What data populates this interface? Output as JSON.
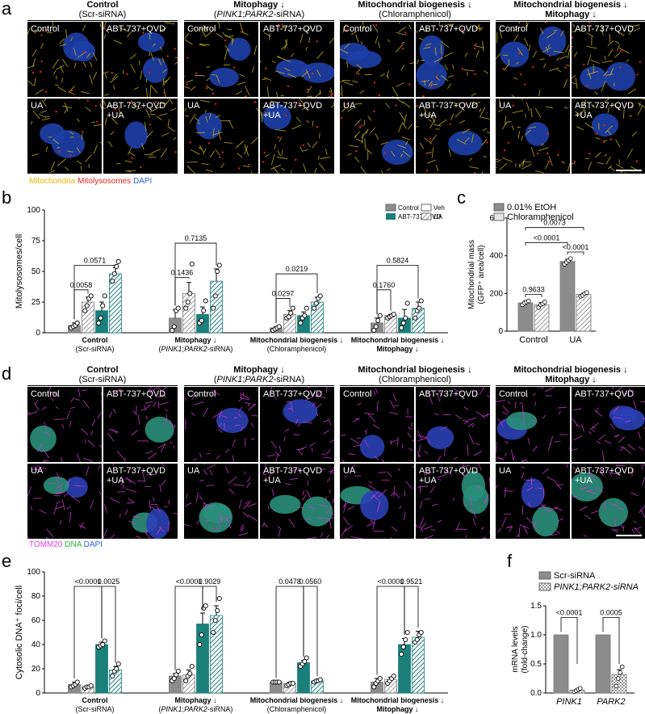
{
  "panel_letters": {
    "a": "a",
    "b": "b",
    "c": "c",
    "d": "d",
    "e": "e",
    "f": "f"
  },
  "groups": [
    {
      "title": "Control",
      "subtitle": "(Scr-siRNA)",
      "subtitle_parts": [
        "(Scr-siRNA)"
      ]
    },
    {
      "title": "Mitophagy ↓",
      "subtitle": "(PINK1;PARK2-siRNA)",
      "subtitle_parts": [
        "(",
        "PINK1",
        ";",
        "PARK2",
        "-siRNA)"
      ]
    },
    {
      "title": "Mitochondrial biogenesis ↓",
      "subtitle": "(Chloramphenicol)",
      "subtitle_parts": [
        "(Chloramphenicol)"
      ]
    },
    {
      "title": "Mitochondrial biogenesis ↓",
      "subtitle": "Mitophagy ↓",
      "subtitle_parts": [
        "Mitophagy ↓"
      ]
    }
  ],
  "tile_labels": {
    "control": "Control",
    "abt": "ABT-737+QVD",
    "ua": "UA",
    "abt_ua": "ABT-737+QVD\n+UA"
  },
  "colors": {
    "gray": "#8c8c8c",
    "teal": "#1b7f7a",
    "light_gray": "#e6e6e6",
    "mito_yellow": "#e8b800",
    "lyso_red": "#e02020",
    "dapi_blue": "#2f5fd0",
    "tomm_magenta": "#e040e0",
    "dna_green": "#20c020"
  },
  "caption_a": {
    "mito": "Mitochondria",
    "lyso": "Mitolysosomes",
    "dapi": "DAPI"
  },
  "caption_d": {
    "tomm": "TOMM20",
    "dna": "DNA",
    "dapi": "DAPI"
  },
  "chart_data": [
    {
      "panel": "b",
      "type": "bar",
      "ylabel": "Mitolysosomes/cell",
      "ylim": [
        0,
        100
      ],
      "yticks": [
        0,
        25,
        50,
        75,
        100
      ],
      "legend": [
        "Control",
        "ABT-737+QVD",
        "Veh",
        "UA"
      ],
      "group_labels": [
        [
          "Control",
          "(Scr-siRNA)"
        ],
        [
          "Mitophagy ↓",
          "(PINK1;PARK2-siRNA)"
        ],
        [
          "Mitochondrial biogenesis ↓",
          "(Chloramphenicol)"
        ],
        [
          "Mitochondrial biogenesis ↓",
          "Mitophagy ↓"
        ]
      ],
      "conditions": [
        "Control+Veh",
        "Control+UA",
        "ABT-737+QVD+Veh",
        "ABT-737+QVD+UA"
      ],
      "values": [
        [
          6,
          25,
          18,
          48
        ],
        [
          12,
          32,
          15,
          42
        ],
        [
          4,
          15,
          14,
          25
        ],
        [
          8,
          14,
          12,
          20
        ]
      ],
      "errors": [
        [
          2,
          4,
          7,
          5
        ],
        [
          7,
          9,
          6,
          10
        ],
        [
          1,
          3,
          3,
          4
        ],
        [
          4,
          1,
          7,
          5
        ]
      ],
      "points": [
        [
          [
            4,
            5,
            6,
            8
          ],
          [
            18,
            22,
            28,
            30
          ],
          [
            8,
            12,
            22,
            30
          ],
          [
            42,
            48,
            54,
            58
          ]
        ],
        [
          [
            2,
            5,
            18,
            20
          ],
          [
            20,
            25,
            32,
            56
          ],
          [
            8,
            10,
            18,
            26
          ],
          [
            20,
            30,
            50,
            55
          ]
        ],
        [
          [
            2,
            3,
            4,
            5
          ],
          [
            12,
            13,
            16,
            20
          ],
          [
            8,
            12,
            14,
            20
          ],
          [
            20,
            24,
            28,
            30
          ]
        ],
        [
          [
            2,
            5,
            10,
            14
          ],
          [
            12,
            13,
            14,
            15
          ],
          [
            4,
            8,
            12,
            24
          ],
          [
            12,
            18,
            20,
            26
          ]
        ]
      ],
      "annotations": [
        {
          "group": 0,
          "text": "0.0058"
        },
        {
          "group": 0,
          "text": "0.0571"
        },
        {
          "group": 1,
          "text": "0.1436"
        },
        {
          "group": 1,
          "text": "0.7135"
        },
        {
          "group": 2,
          "text": "0.0297"
        },
        {
          "group": 2,
          "text": "0.0219"
        },
        {
          "group": 3,
          "text": "0.1760"
        },
        {
          "group": 3,
          "text": "0.5824"
        }
      ]
    },
    {
      "panel": "c",
      "type": "bar",
      "ylabel": "Mitochondrial mass (GFP⁺ area/cell)",
      "ylim": [
        0,
        600
      ],
      "yticks": [
        0,
        200,
        400,
        600
      ],
      "categories": [
        "Control",
        "UA"
      ],
      "legend": [
        "0.01% EtOH",
        "Chloramphenicol"
      ],
      "values": [
        [
          150,
          140
        ],
        [
          370,
          195
        ]
      ],
      "errors": [
        [
          10,
          12
        ],
        [
          12,
          6
        ]
      ],
      "points": [
        [
          [
            140,
            150,
            155,
            160
          ],
          [
            125,
            140,
            145,
            155
          ]
        ],
        [
          [
            355,
            365,
            375,
            385
          ],
          [
            185,
            190,
            200,
            205
          ]
        ]
      ],
      "annotations": [
        "0.9633",
        "<0.0001",
        "<0.0001",
        "0.0073"
      ]
    },
    {
      "panel": "e",
      "type": "bar",
      "ylabel": "Cytosolic DNA⁺ foci/cell",
      "ylim": [
        0,
        100
      ],
      "yticks": [
        0,
        20,
        40,
        60,
        80,
        100
      ],
      "group_labels": [
        [
          "Control",
          "(Scr-siRNA)"
        ],
        [
          "Mitophagy ↓",
          "(PINK1;PARK2-siRNA)"
        ],
        [
          "Mitochondrial biogenesis ↓",
          "(Chloramphenicol)"
        ],
        [
          "Mitochondrial biogenesis ↓",
          "Mitophagy ↓"
        ]
      ],
      "conditions": [
        "Control+Veh",
        "Control+UA",
        "ABT-737+QVD+Veh",
        "ABT-737+QVD+UA"
      ],
      "values": [
        [
          7,
          5,
          40,
          19
        ],
        [
          14,
          15,
          57,
          64
        ],
        [
          9,
          8,
          25,
          10
        ],
        [
          9,
          11,
          40,
          46
        ]
      ],
      "errors": [
        [
          2,
          1,
          2,
          3
        ],
        [
          2,
          4,
          9,
          8
        ],
        [
          0.5,
          1,
          2,
          1
        ],
        [
          3,
          2,
          5,
          5
        ]
      ],
      "points": [
        [
          [
            5,
            6,
            7,
            9
          ],
          [
            4,
            5,
            5,
            6
          ],
          [
            38,
            39,
            40,
            43
          ],
          [
            14,
            18,
            20,
            24
          ]
        ],
        [
          [
            10,
            12,
            15,
            18
          ],
          [
            10,
            14,
            16,
            22
          ],
          [
            40,
            48,
            70,
            72
          ],
          [
            50,
            60,
            68,
            78
          ]
        ],
        [
          [
            9,
            9,
            9,
            9
          ],
          [
            6,
            7,
            8,
            8
          ],
          [
            22,
            24,
            26,
            29
          ],
          [
            9,
            10,
            10,
            11
          ]
        ],
        [
          [
            5,
            8,
            10,
            12
          ],
          [
            8,
            10,
            12,
            14
          ],
          [
            32,
            38,
            44,
            50
          ],
          [
            42,
            44,
            48,
            50
          ]
        ]
      ],
      "annotations": [
        {
          "group": 0,
          "text": "<0.0001"
        },
        {
          "group": 0,
          "text": "0.0025"
        },
        {
          "group": 1,
          "text": "<0.0001"
        },
        {
          "group": 1,
          "text": "0.9029"
        },
        {
          "group": 2,
          "text": "0.0478"
        },
        {
          "group": 2,
          "text": "0.0560"
        },
        {
          "group": 3,
          "text": "<0.0001"
        },
        {
          "group": 3,
          "text": "0.9521"
        }
      ]
    },
    {
      "panel": "f",
      "type": "bar",
      "ylabel": "mRNA levels (fold-change)",
      "ylim": [
        0,
        1.5
      ],
      "yticks": [
        0.0,
        0.5,
        1.0,
        1.5
      ],
      "categories": [
        "PINK1",
        "PARK2"
      ],
      "legend": [
        "Scr-siRNA",
        "PINK1;PARK2-siRNA"
      ],
      "values": [
        [
          1.0,
          0.05
        ],
        [
          1.0,
          0.32
        ]
      ],
      "errors": [
        [
          0,
          0.02
        ],
        [
          0,
          0.08
        ]
      ],
      "points": [
        [
          [],
          [
            0.02,
            0.04,
            0.06,
            0.08
          ]
        ],
        [
          [],
          [
            0.12,
            0.25,
            0.35,
            0.45
          ]
        ]
      ],
      "annotations": [
        "<0.0001",
        "0.0005"
      ]
    }
  ]
}
